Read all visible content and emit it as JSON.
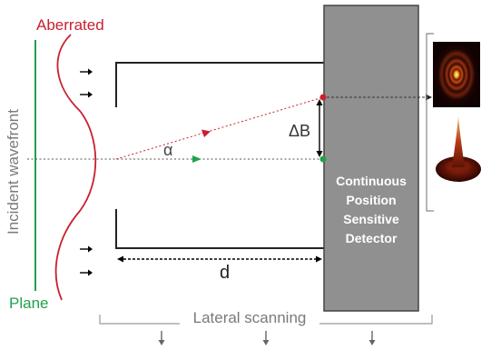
{
  "labels": {
    "aberrated": "Aberrated",
    "plane": "Plane",
    "incident_wavefront": "Incident wavefront",
    "alpha": "α",
    "delta_b": "ΔB",
    "d": "d",
    "lateral_scanning": "Lateral scanning",
    "detector_line1": "Continuous",
    "detector_line2": "Position",
    "detector_line3": "Sensitive",
    "detector_line4": "Detector"
  },
  "colors": {
    "aberrated": "#c8202f",
    "plane": "#22a04a",
    "detector_fill": "#909090",
    "detector_text": "#ffffff",
    "text_gray": "#7a7a7a",
    "ray_red": "#c8202f",
    "ray_green": "#22a04a"
  },
  "icons": {
    "psf_image": "airy-ring-pattern-icon",
    "psf_3d": "3d-intensity-peak-icon"
  }
}
